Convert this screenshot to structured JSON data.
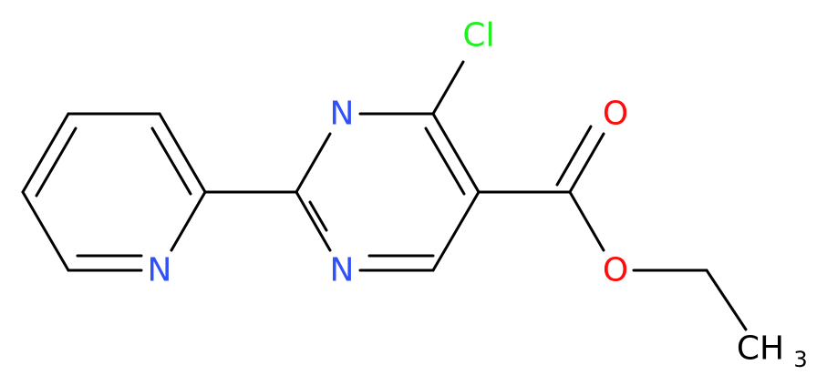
{
  "atoms": [
    {
      "label": "Cl"
    },
    {
      "label": "N"
    },
    {
      "label": "N"
    },
    {
      "label": "N"
    },
    {
      "label": "O"
    },
    {
      "label": "O"
    }
  ],
  "methyl": {
    "label": "CH",
    "subscript": "3"
  }
}
